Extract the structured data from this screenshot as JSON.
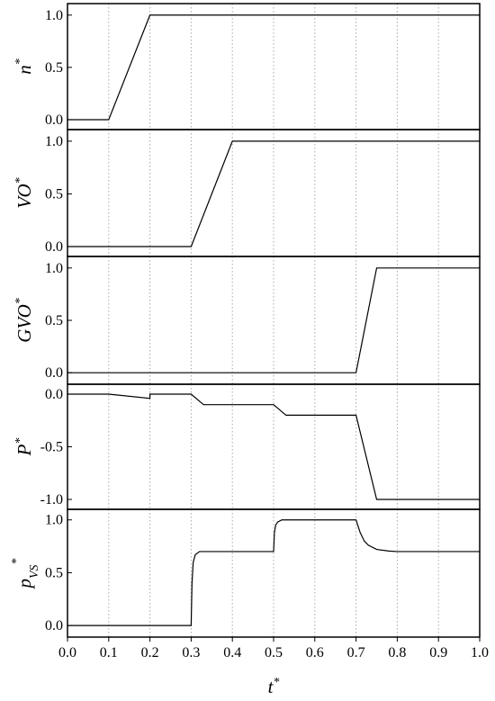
{
  "x_axis": {
    "xlim": [
      0,
      1
    ],
    "grid": true,
    "xticks": [
      {
        "value": 0,
        "label": "0.0"
      },
      {
        "value": 0.1,
        "label": "0.1"
      },
      {
        "value": 0.2,
        "label": "0.2"
      },
      {
        "value": 0.3,
        "label": "0.3"
      },
      {
        "value": 0.4,
        "label": "0.4"
      },
      {
        "value": 0.5,
        "label": "0.5"
      },
      {
        "value": 0.6,
        "label": "0.6"
      },
      {
        "value": 0.7,
        "label": "0.7"
      },
      {
        "value": 0.8,
        "label": "0.8"
      },
      {
        "value": 0.9,
        "label": "0.9"
      },
      {
        "value": 1,
        "label": "1.0"
      }
    ],
    "label": {
      "base": "t",
      "sup": "*"
    }
  },
  "chart_data": [
    {
      "type": "line",
      "y_label": {
        "base": "n",
        "sup": "*"
      },
      "color": "#000000",
      "x": [
        0,
        0.1,
        0.2,
        1
      ],
      "values": [
        0,
        0,
        1,
        1
      ],
      "ylim": [
        -0.095,
        1.11
      ],
      "yticks": [
        {
          "value": 0,
          "label": "0.0"
        },
        0.5,
        {
          "value": 1,
          "label": "1.0"
        }
      ]
    },
    {
      "type": "line",
      "y_label": {
        "base": "VO",
        "sup": "*"
      },
      "color": "#000000",
      "x": [
        0,
        0.3,
        0.4,
        1
      ],
      "values": [
        0,
        0,
        1,
        1
      ],
      "ylim": [
        -0.094,
        1.11
      ],
      "yticks": [
        {
          "value": 0,
          "label": "0.0"
        },
        0.5,
        {
          "value": 1,
          "label": "1.0"
        }
      ]
    },
    {
      "type": "line",
      "y_label": {
        "base": "GVO",
        "sup": "*"
      },
      "color": "#000000",
      "x": [
        0,
        0.7,
        0.75,
        1
      ],
      "values": [
        0,
        0,
        1,
        1
      ],
      "ylim": [
        -0.11,
        1.11
      ],
      "yticks": [
        {
          "value": 0,
          "label": "0.0"
        },
        0.5,
        {
          "value": 1,
          "label": "1.0"
        }
      ]
    },
    {
      "type": "line",
      "y_label": {
        "base": "P",
        "sup": "*"
      },
      "color": "#000000",
      "x": [
        0,
        0.1,
        0.2,
        0.2,
        0.3,
        0.33,
        0.5,
        0.53,
        0.7,
        0.75,
        1
      ],
      "values": [
        0,
        0,
        -0.04,
        0,
        0,
        -0.1,
        -0.1,
        -0.2,
        -0.2,
        -1,
        -1
      ],
      "ylim": [
        -1.094,
        0.094
      ],
      "yticks": [
        {
          "value": -1,
          "label": "-1.0"
        },
        -0.5,
        {
          "value": 0,
          "label": "0.0"
        }
      ]
    },
    {
      "type": "line",
      "y_label": {
        "base": "p",
        "sub": "VS",
        "sup": "*"
      },
      "color": "#000000",
      "x": [
        0,
        0.3,
        0.302,
        0.305,
        0.31,
        0.32,
        0.5,
        0.502,
        0.505,
        0.51,
        0.52,
        0.7,
        0.71,
        0.72,
        0.73,
        0.75,
        0.78,
        0.8,
        1
      ],
      "values": [
        0,
        0,
        0.4,
        0.6,
        0.67,
        0.7,
        0.7,
        0.88,
        0.95,
        0.98,
        1,
        1,
        0.88,
        0.8,
        0.76,
        0.72,
        0.705,
        0.7,
        0.7
      ],
      "ylim": [
        -0.11,
        1.1
      ],
      "yticks": [
        {
          "value": 0,
          "label": "0.0"
        },
        0.5,
        {
          "value": 1,
          "label": "1.0"
        }
      ]
    }
  ]
}
